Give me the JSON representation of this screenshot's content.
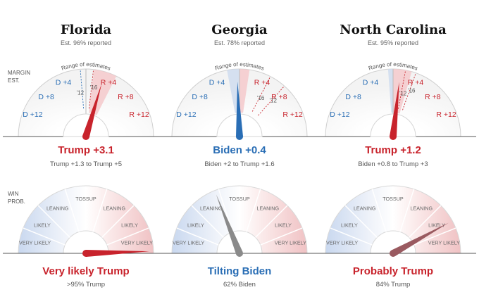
{
  "colors": {
    "dem": "#2a6eb5",
    "rep": "#c8232c",
    "neutral_needle": "#8a8a8a",
    "text": "#111111",
    "muted": "#666666"
  },
  "row_labels": {
    "margin_line1": "MARGIN",
    "margin_line2": "EST.",
    "win_line1": "WIN",
    "win_line2": "PROB."
  },
  "margin_ticks": {
    "d4": "D +4",
    "d8": "D +8",
    "d12": "D +12",
    "r4": "R +4",
    "r8": "R +8",
    "r12": "R +12"
  },
  "range_label": "Range of estimates",
  "win_categories": {
    "very_likely": "VERY LIKELY",
    "likely": "LIKELY",
    "leaning": "LEANING",
    "tossup": "TOSSUP"
  },
  "states": [
    {
      "name": "Florida",
      "reported": "Est. 96% reported",
      "margin_needle": 3.1,
      "range": [
        1.3,
        5
      ],
      "markers": [
        {
          "label": "'12",
          "value": -0.9
        },
        {
          "label": "'16",
          "value": 1.2
        }
      ],
      "margin_headline": "Trump +3.1",
      "margin_party": "rep",
      "margin_range_text": "Trump +1.3 to Trump +5",
      "win_prob_trump": 0.99,
      "win_headline": "Very likely Trump",
      "win_party": "rep",
      "win_sub": ">95% Trump"
    },
    {
      "name": "Georgia",
      "reported": "Est. 78% reported",
      "margin_needle": -0.4,
      "range": [
        -2,
        1.6
      ],
      "markers": [
        {
          "label": "'16",
          "value": 5.1
        },
        {
          "label": "'12",
          "value": 7.8
        }
      ],
      "margin_headline": "Biden +0.4",
      "margin_party": "dem",
      "margin_range_text": "Biden +2 to Trump +1.6",
      "win_prob_trump": 0.38,
      "win_headline": "Tilting Biden",
      "win_party": "dem",
      "win_sub": "62% Biden"
    },
    {
      "name": "North Carolina",
      "reported": "Est. 95% reported",
      "margin_needle": 1.2,
      "range": [
        -0.8,
        3
      ],
      "markers": [
        {
          "label": "'12",
          "value": 2.0
        },
        {
          "label": "'16",
          "value": 3.7
        }
      ],
      "margin_headline": "Trump +1.2",
      "margin_party": "rep",
      "margin_range_text": "Biden +0.8 to Trump +3",
      "win_prob_trump": 0.84,
      "win_headline": "Probably Trump",
      "win_party": "rep",
      "win_sub": "84% Trump"
    }
  ]
}
